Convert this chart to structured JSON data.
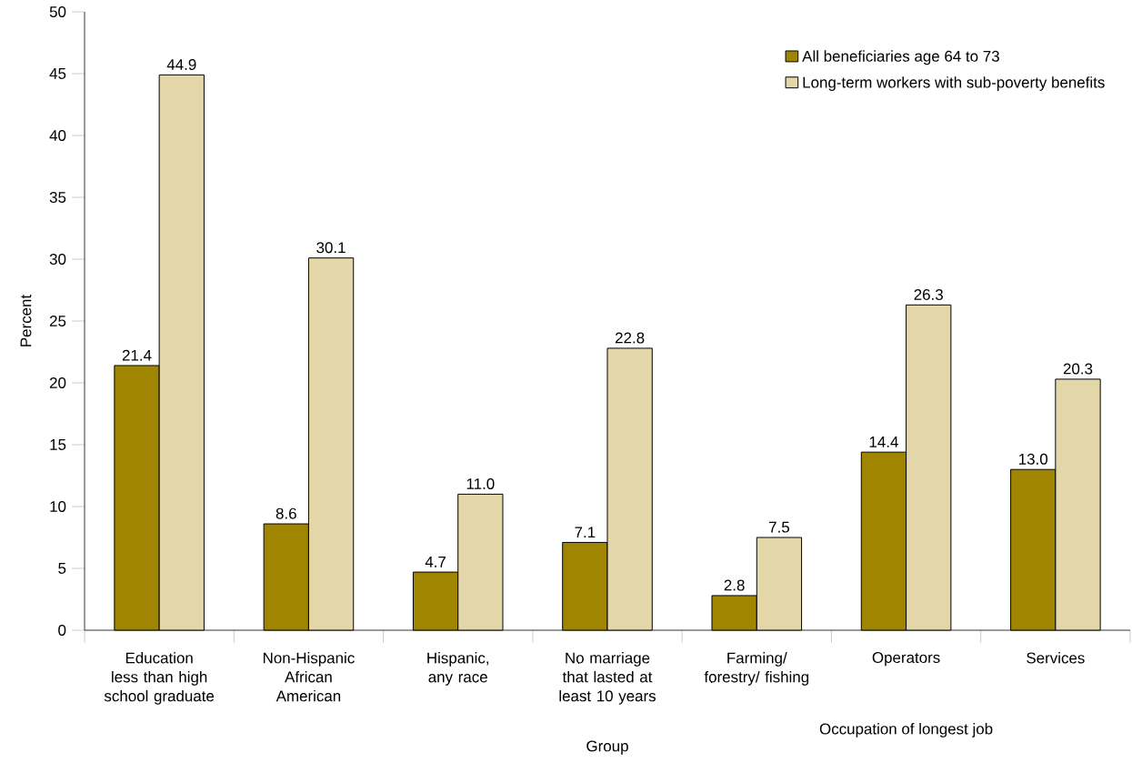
{
  "chart_data": {
    "type": "bar",
    "xlabel": "Group",
    "ylabel": "Percent",
    "categories": [
      "Education less than high school graduate",
      "Non-Hispanic African American",
      "Hispanic, any race",
      "No marriage that lasted at least 10 years",
      "Farming/ forestry/ fishing",
      "Operators",
      "Services"
    ],
    "series": [
      {
        "name": "All beneficiaries age 64 to 73",
        "color": "#a08600",
        "values": [
          21.4,
          8.6,
          4.7,
          7.1,
          2.8,
          14.4,
          13.0
        ],
        "value_labels": [
          "21.4",
          "8.6",
          "4.7",
          "7.1",
          "2.8",
          "14.4",
          "13.0"
        ]
      },
      {
        "name": "Long-term workers with sub-poverty benefits",
        "color": "#e3d6a9",
        "values": [
          44.9,
          30.1,
          11.0,
          22.8,
          7.5,
          26.3,
          20.3
        ],
        "value_labels": [
          "44.9",
          "30.1",
          "11.0",
          "22.8",
          "7.5",
          "26.3",
          "20.3"
        ]
      }
    ],
    "ylim": [
      0,
      50
    ],
    "yticks": [
      0,
      5,
      10,
      15,
      20,
      25,
      30,
      35,
      40,
      45,
      50
    ],
    "legend": "top right",
    "annotations": [
      "Occupation of longest job"
    ]
  }
}
